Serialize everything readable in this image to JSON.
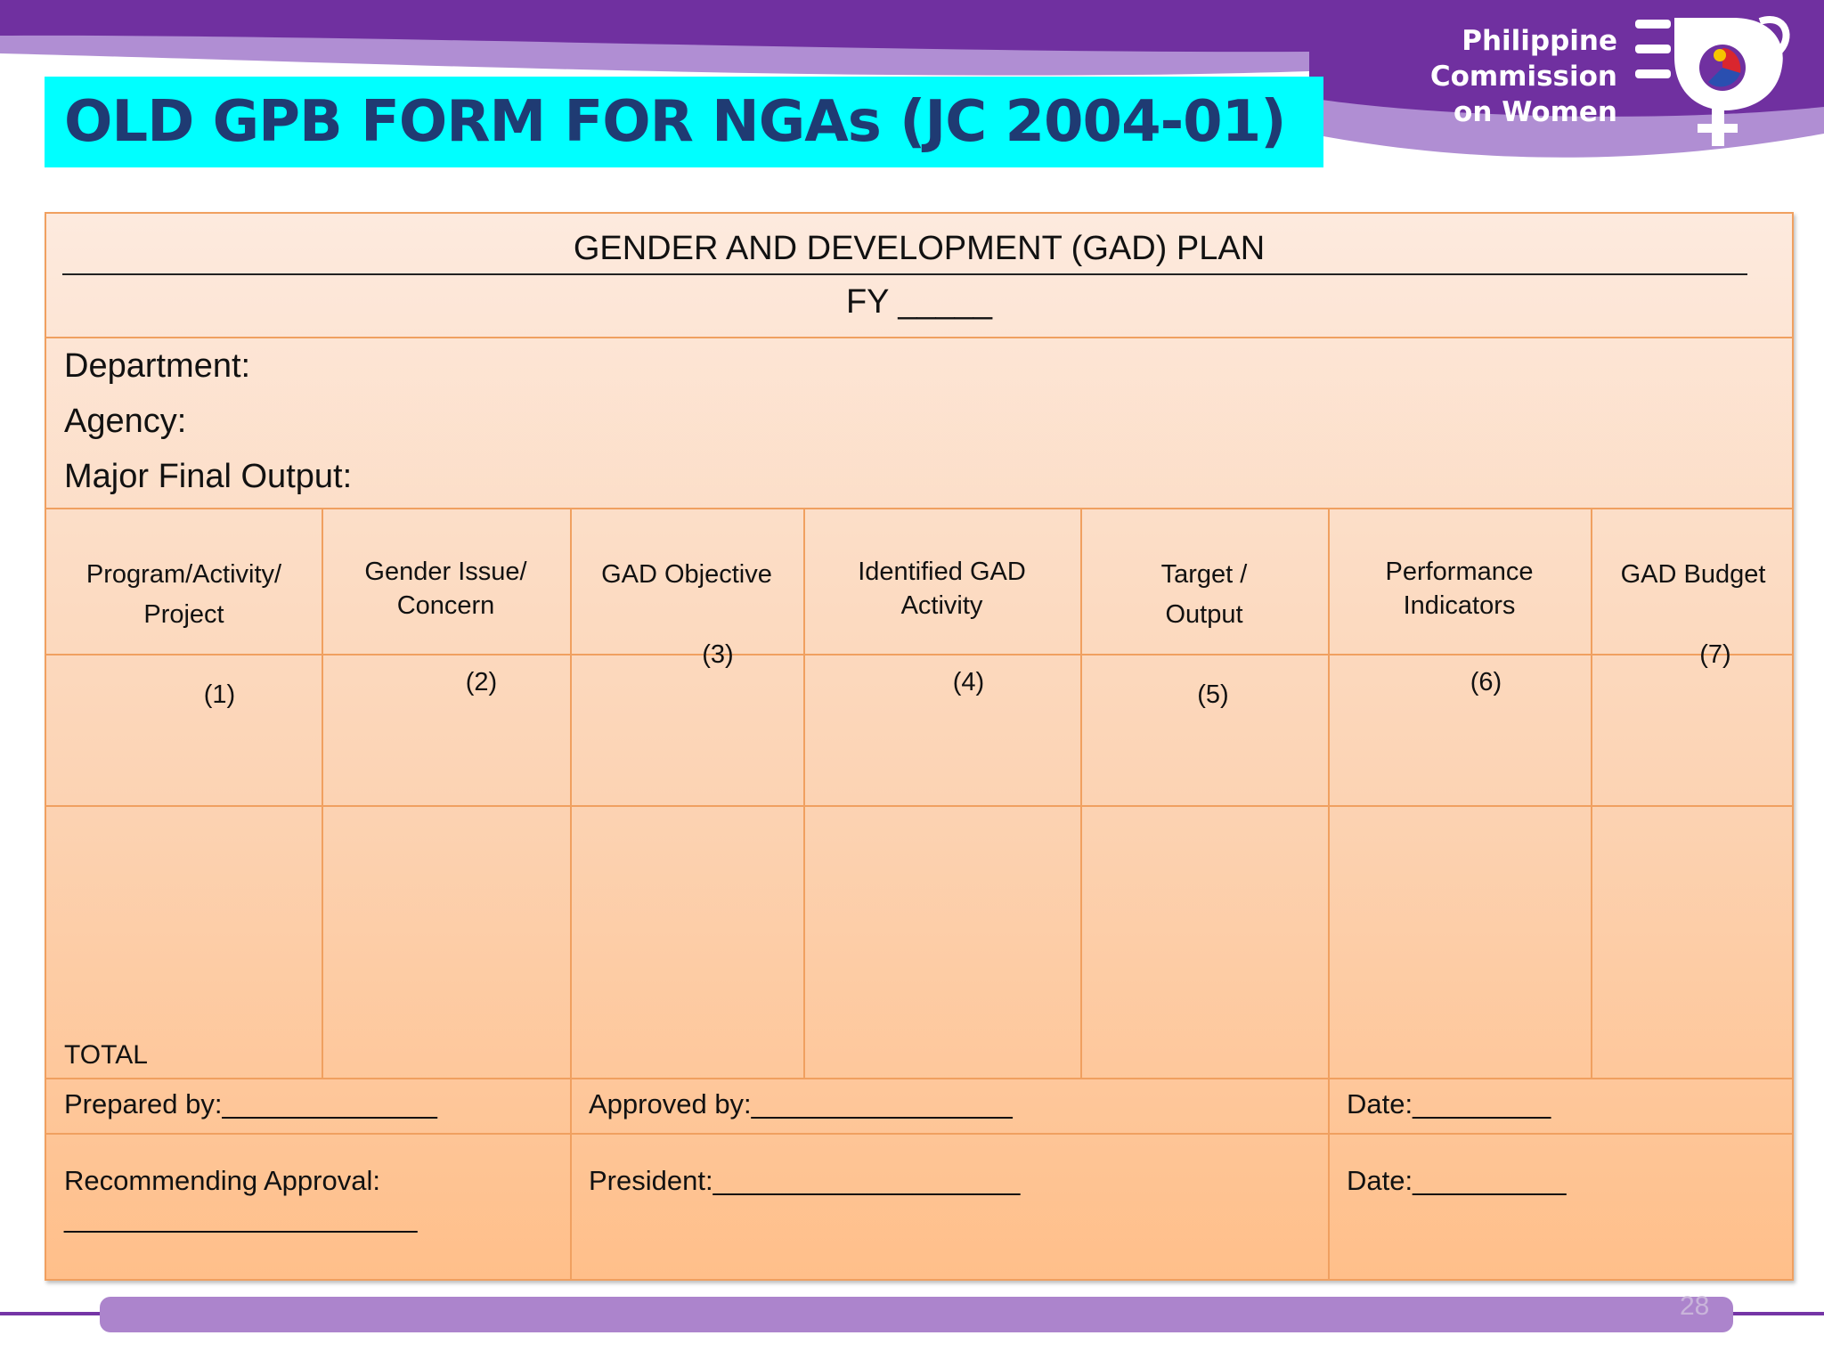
{
  "slide": {
    "title": "OLD GPB FORM FOR NGAs (JC 2004-01)",
    "page_number": "28"
  },
  "logo": {
    "line1": "Philippine",
    "line2": "Commission",
    "line3": "on Women"
  },
  "colors": {
    "banner_purple": "#7030a0",
    "banner_lavender": "#b08ed3",
    "title_highlight": "#00ffff",
    "title_text": "#1f3b73",
    "form_border": "#f0a060"
  },
  "form": {
    "title": "GENDER AND DEVELOPMENT (GAD) PLAN",
    "fy": "FY _____",
    "fields": {
      "department": "Department:",
      "agency": "Agency:",
      "major_final_output": "Major Final Output:"
    },
    "columns": [
      {
        "label": "Program/Activity/\nProject",
        "number": "(1)"
      },
      {
        "label": "Gender Issue/\nConcern",
        "number": "(2)"
      },
      {
        "label": "GAD Objective",
        "number": "(3)"
      },
      {
        "label": "Identified GAD\nActivity",
        "number": "(4)"
      },
      {
        "label": "Target /\nOutput",
        "number": "(5)"
      },
      {
        "label": "Performance\nIndicators",
        "number": "(6)"
      },
      {
        "label": "GAD Budget",
        "number": "(7)"
      }
    ],
    "total_label": "TOTAL",
    "signatures": {
      "prepared_by": "Prepared by:______________",
      "approved_by": "Approved by:_________________",
      "date1": "Date:_________",
      "recommending_approval": "Recommending Approval:",
      "recommending_line": "_______________________",
      "president": "President:____________________",
      "date2": "Date:__________"
    }
  }
}
